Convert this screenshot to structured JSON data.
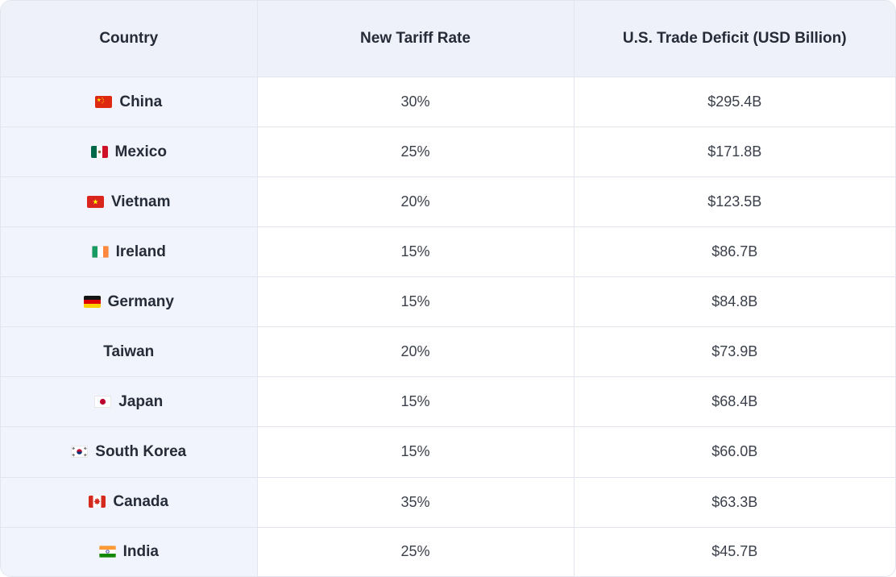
{
  "chart_data": {
    "type": "table",
    "columns": [
      "Country",
      "New Tariff Rate",
      "U.S. Trade Deficit (USD Billion)"
    ],
    "rows": [
      {
        "country": "China",
        "flag": "flag-china",
        "tariff_rate": "30%",
        "trade_deficit": "$295.4B"
      },
      {
        "country": "Mexico",
        "flag": "flag-mexico",
        "tariff_rate": "25%",
        "trade_deficit": "$171.8B"
      },
      {
        "country": "Vietnam",
        "flag": "flag-vietnam",
        "tariff_rate": "20%",
        "trade_deficit": "$123.5B"
      },
      {
        "country": "Ireland",
        "flag": "flag-ireland",
        "tariff_rate": "15%",
        "trade_deficit": "$86.7B"
      },
      {
        "country": "Germany",
        "flag": "flag-germany",
        "tariff_rate": "15%",
        "trade_deficit": "$84.8B"
      },
      {
        "country": "Taiwan",
        "flag": null,
        "tariff_rate": "20%",
        "trade_deficit": "$73.9B"
      },
      {
        "country": "Japan",
        "flag": "flag-japan",
        "tariff_rate": "15%",
        "trade_deficit": "$68.4B"
      },
      {
        "country": "South Korea",
        "flag": "flag-south-korea",
        "tariff_rate": "15%",
        "trade_deficit": "$66.0B"
      },
      {
        "country": "Canada",
        "flag": "flag-canada",
        "tariff_rate": "35%",
        "trade_deficit": "$63.3B"
      },
      {
        "country": "India",
        "flag": "flag-india",
        "tariff_rate": "25%",
        "trade_deficit": "$45.7B"
      }
    ]
  },
  "theme": {
    "header_bg": "#eef1fa",
    "first_column_bg": "#f1f4fc",
    "row_bg": "#ffffff",
    "border": "#e2e4ee",
    "heading_text": "#262b38",
    "value_text": "#3a3f4a"
  }
}
